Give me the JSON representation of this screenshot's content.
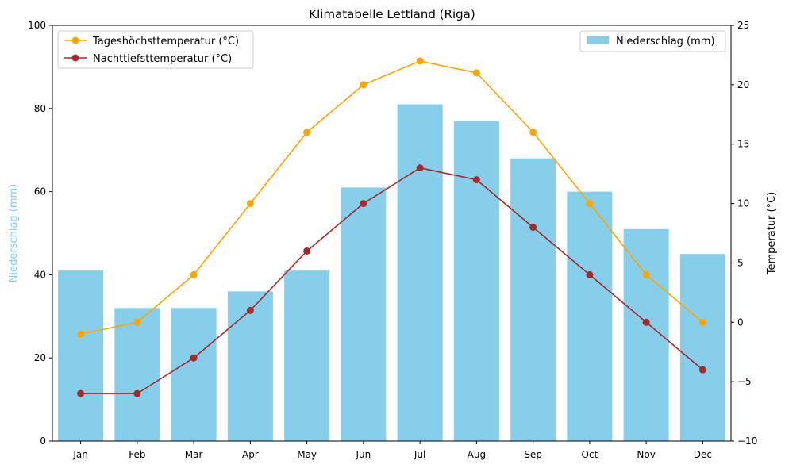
{
  "chart_data": {
    "type": "bar+line",
    "title": "Klimatabelle Lettland (Riga)",
    "categories": [
      "Jan",
      "Feb",
      "Mar",
      "Apr",
      "May",
      "Jun",
      "Jul",
      "Aug",
      "Sep",
      "Oct",
      "Nov",
      "Dec"
    ],
    "bar_series": {
      "name": "Niederschlag (mm)",
      "color": "#87ceeb",
      "axis": "left",
      "values": [
        41,
        32,
        32,
        36,
        41,
        61,
        81,
        77,
        68,
        60,
        51,
        45
      ]
    },
    "line_series": [
      {
        "name": "Tageshöchsttemperatur (°C)",
        "color": "#ffa500",
        "axis": "right",
        "values": [
          -1,
          0,
          4,
          10,
          16,
          20,
          22,
          21,
          16,
          10,
          4,
          0
        ]
      },
      {
        "name": "Nachttiefsttemperatur (°C)",
        "color": "#a52a2a",
        "axis": "right",
        "values": [
          -6,
          -6,
          -3,
          1,
          6,
          10,
          13,
          12,
          8,
          4,
          0,
          -4
        ]
      }
    ],
    "left_axis": {
      "label": "Niederschlag (mm)",
      "label_color": "#87ceeb",
      "ylim": [
        0,
        100
      ],
      "ticks": [
        0,
        20,
        40,
        60,
        80,
        100
      ]
    },
    "right_axis": {
      "label": "Temperatur (°C)",
      "ylim": [
        -10,
        25
      ],
      "ticks": [
        -10,
        -5,
        0,
        5,
        10,
        15,
        20,
        25
      ]
    },
    "legends": {
      "lines_position": "top-left",
      "bars_position": "top-right"
    },
    "grid": false
  }
}
